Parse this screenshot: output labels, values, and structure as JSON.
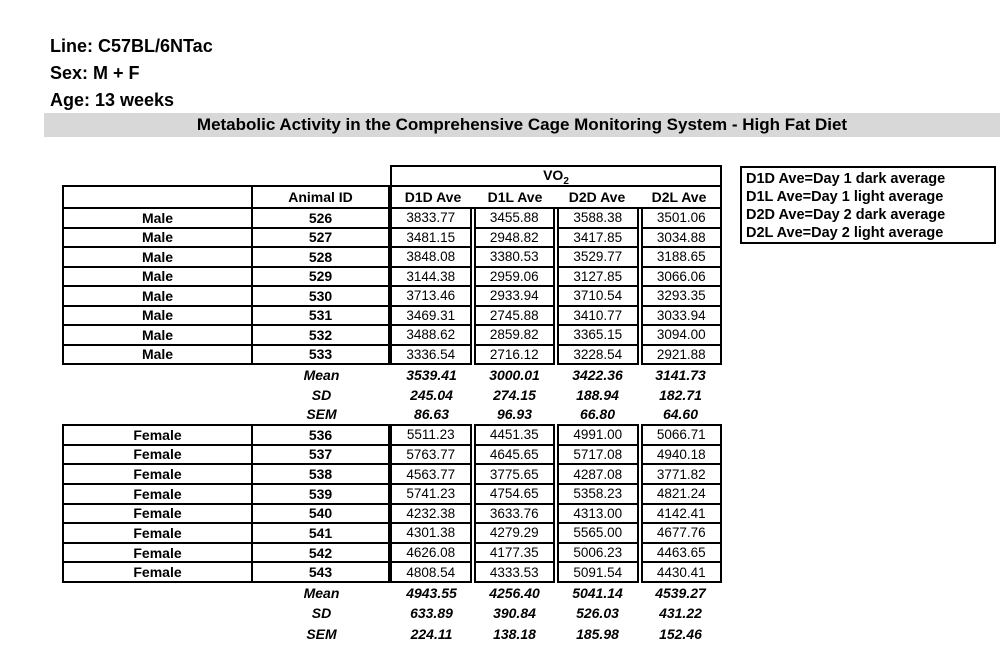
{
  "meta": {
    "line": "Line: C57BL/6NTac",
    "sex": "Sex: M + F",
    "age": "Age: 13 weeks"
  },
  "title": "Metabolic Activity in the Comprehensive Cage Monitoring System - High Fat Diet",
  "legend": {
    "lines": [
      "D1D Ave=Day 1 dark average",
      "D1L Ave=Day 1 light average",
      "D2D Ave=Day 2 dark average",
      "D2L Ave=Day 2 light average"
    ]
  },
  "table": {
    "vo2_label": "VO",
    "vo2_sub": "2",
    "id_header": "Animal ID",
    "columns": [
      "D1D Ave",
      "D1L Ave",
      "D2D Ave",
      "D2L Ave"
    ],
    "male": {
      "rows": [
        {
          "sex": "Male",
          "id": "526",
          "values": [
            "3833.77",
            "3455.88",
            "3588.38",
            "3501.06"
          ]
        },
        {
          "sex": "Male",
          "id": "527",
          "values": [
            "3481.15",
            "2948.82",
            "3417.85",
            "3034.88"
          ]
        },
        {
          "sex": "Male",
          "id": "528",
          "values": [
            "3848.08",
            "3380.53",
            "3529.77",
            "3188.65"
          ]
        },
        {
          "sex": "Male",
          "id": "529",
          "values": [
            "3144.38",
            "2959.06",
            "3127.85",
            "3066.06"
          ]
        },
        {
          "sex": "Male",
          "id": "530",
          "values": [
            "3713.46",
            "2933.94",
            "3710.54",
            "3293.35"
          ]
        },
        {
          "sex": "Male",
          "id": "531",
          "values": [
            "3469.31",
            "2745.88",
            "3410.77",
            "3033.94"
          ]
        },
        {
          "sex": "Male",
          "id": "532",
          "values": [
            "3488.62",
            "2859.82",
            "3365.15",
            "3094.00"
          ]
        },
        {
          "sex": "Male",
          "id": "533",
          "values": [
            "3336.54",
            "2716.12",
            "3228.54",
            "2921.88"
          ]
        }
      ],
      "stats": [
        {
          "label": "Mean",
          "values": [
            "3539.41",
            "3000.01",
            "3422.36",
            "3141.73"
          ]
        },
        {
          "label": "SD",
          "values": [
            "245.04",
            "274.15",
            "188.94",
            "182.71"
          ]
        },
        {
          "label": "SEM",
          "values": [
            "86.63",
            "96.93",
            "66.80",
            "64.60"
          ]
        }
      ]
    },
    "female": {
      "rows": [
        {
          "sex": "Female",
          "id": "536",
          "values": [
            "5511.23",
            "4451.35",
            "4991.00",
            "5066.71"
          ]
        },
        {
          "sex": "Female",
          "id": "537",
          "values": [
            "5763.77",
            "4645.65",
            "5717.08",
            "4940.18"
          ]
        },
        {
          "sex": "Female",
          "id": "538",
          "values": [
            "4563.77",
            "3775.65",
            "4287.08",
            "3771.82"
          ]
        },
        {
          "sex": "Female",
          "id": "539",
          "values": [
            "5741.23",
            "4754.65",
            "5358.23",
            "4821.24"
          ]
        },
        {
          "sex": "Female",
          "id": "540",
          "values": [
            "4232.38",
            "3633.76",
            "4313.00",
            "4142.41"
          ]
        },
        {
          "sex": "Female",
          "id": "541",
          "values": [
            "4301.38",
            "4279.29",
            "5565.00",
            "4677.76"
          ]
        },
        {
          "sex": "Female",
          "id": "542",
          "values": [
            "4626.08",
            "4177.35",
            "5006.23",
            "4463.65"
          ]
        },
        {
          "sex": "Female",
          "id": "543",
          "values": [
            "4808.54",
            "4333.53",
            "5091.54",
            "4430.41"
          ]
        }
      ],
      "stats": [
        {
          "label": "Mean",
          "values": [
            "4943.55",
            "4256.40",
            "5041.14",
            "4539.27"
          ]
        },
        {
          "label": "SD",
          "values": [
            "633.89",
            "390.84",
            "526.03",
            "431.22"
          ]
        },
        {
          "label": "SEM",
          "values": [
            "224.11",
            "138.18",
            "185.98",
            "152.46"
          ]
        }
      ]
    }
  },
  "colors": {
    "title_band": "#d8d8d8",
    "border": "#000000",
    "text": "#000000",
    "background": "#ffffff"
  }
}
